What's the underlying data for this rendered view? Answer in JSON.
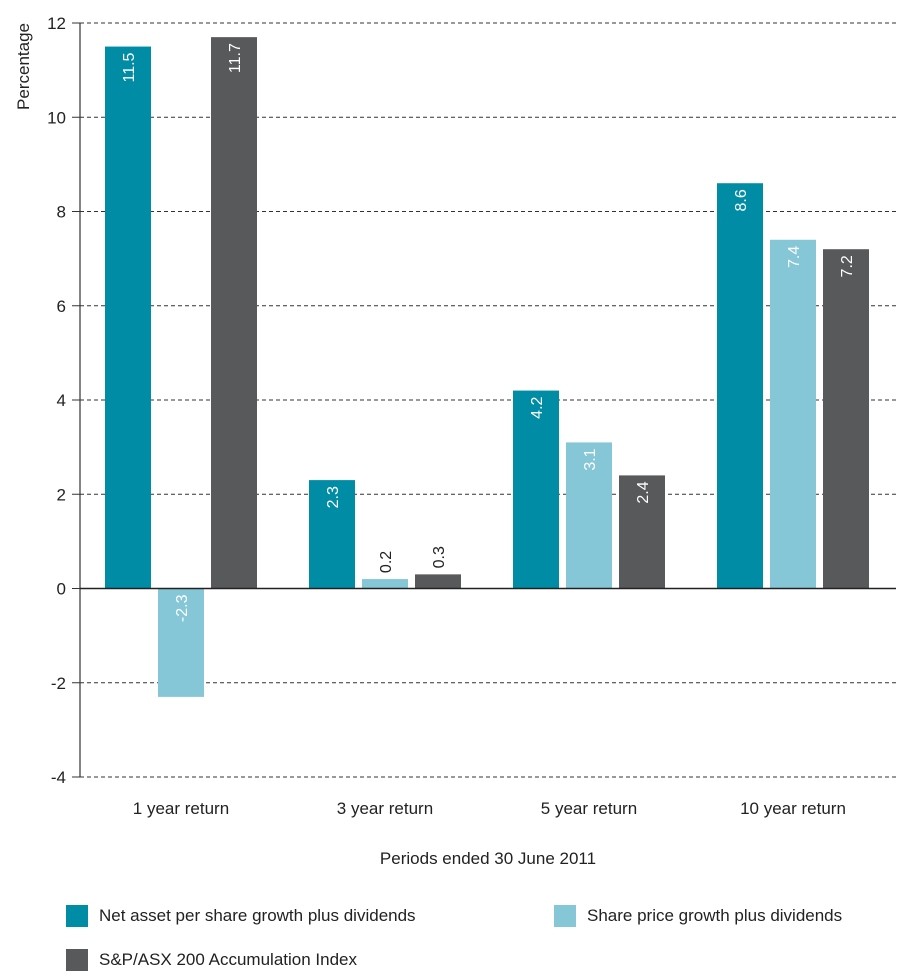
{
  "chart_data": {
    "type": "bar",
    "categories": [
      "1 year return",
      "3 year return",
      "5 year return",
      "10 year return"
    ],
    "series": [
      {
        "name": "Net asset per share growth plus dividends",
        "values": [
          11.5,
          2.3,
          4.2,
          8.6
        ],
        "color": "#008ca4"
      },
      {
        "name": "Share price growth plus dividends",
        "values": [
          -2.3,
          0.2,
          3.1,
          7.4
        ],
        "color": "#85c7d6"
      },
      {
        "name": "S&P/ASX 200 Accumulation Index",
        "values": [
          11.7,
          0.3,
          2.4,
          7.2
        ],
        "color": "#58595b"
      }
    ],
    "data_labels": [
      [
        "11.5",
        "2.3",
        "4.2",
        "8.6"
      ],
      [
        "-2.3",
        "0.2",
        "3.1",
        "7.4"
      ],
      [
        "11.7",
        "0.3",
        "2.4",
        "7.2"
      ]
    ],
    "ylabel": "Percentage",
    "xlabel": "Periods ended 30 June 2011",
    "ylim": [
      -4,
      12
    ],
    "yticks": [
      "-4",
      "-2",
      "0",
      "2",
      "4",
      "6",
      "8",
      "10",
      "12"
    ],
    "grid": "horizontal dashed",
    "legend_position": "bottom"
  }
}
